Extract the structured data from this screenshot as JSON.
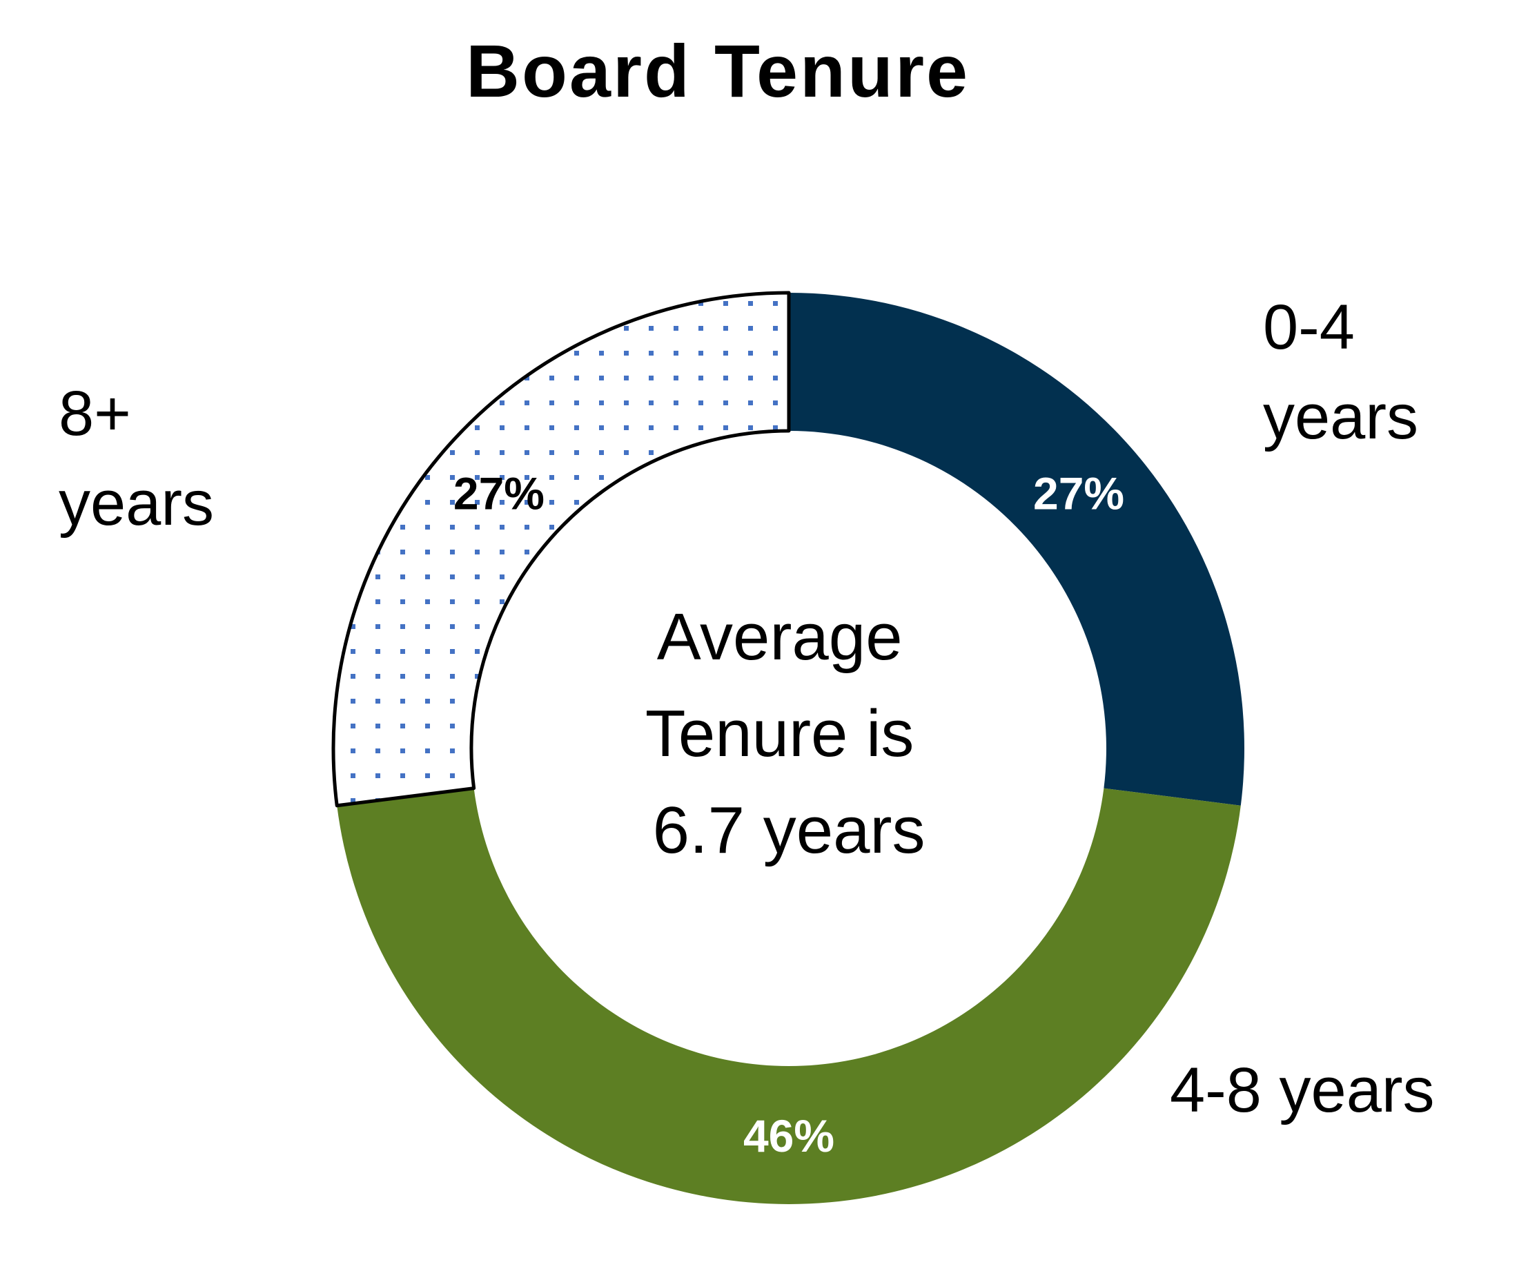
{
  "chart_data": {
    "type": "pie",
    "variant": "donut",
    "title": "Board Tenure",
    "categories": [
      "0-4 years",
      "4-8 years",
      "8+ years"
    ],
    "values": [
      27,
      46,
      27
    ],
    "value_labels": [
      "27%",
      "46%",
      "27%"
    ],
    "category_label_lines": [
      [
        "0-4",
        "years"
      ],
      [
        "4-8 years"
      ],
      [
        "8+",
        "years"
      ]
    ],
    "center_text": [
      "Average",
      "Tenure is",
      "6.7 years"
    ],
    "colors": [
      "#02304f",
      "#5d7f23",
      "dotted-pattern"
    ],
    "pattern_dot_color": "#4472c4",
    "label_colors": [
      "#ffffff",
      "#ffffff",
      "#000000"
    ],
    "start_angle_deg": 0,
    "direction": "clockwise",
    "legend": "none"
  }
}
